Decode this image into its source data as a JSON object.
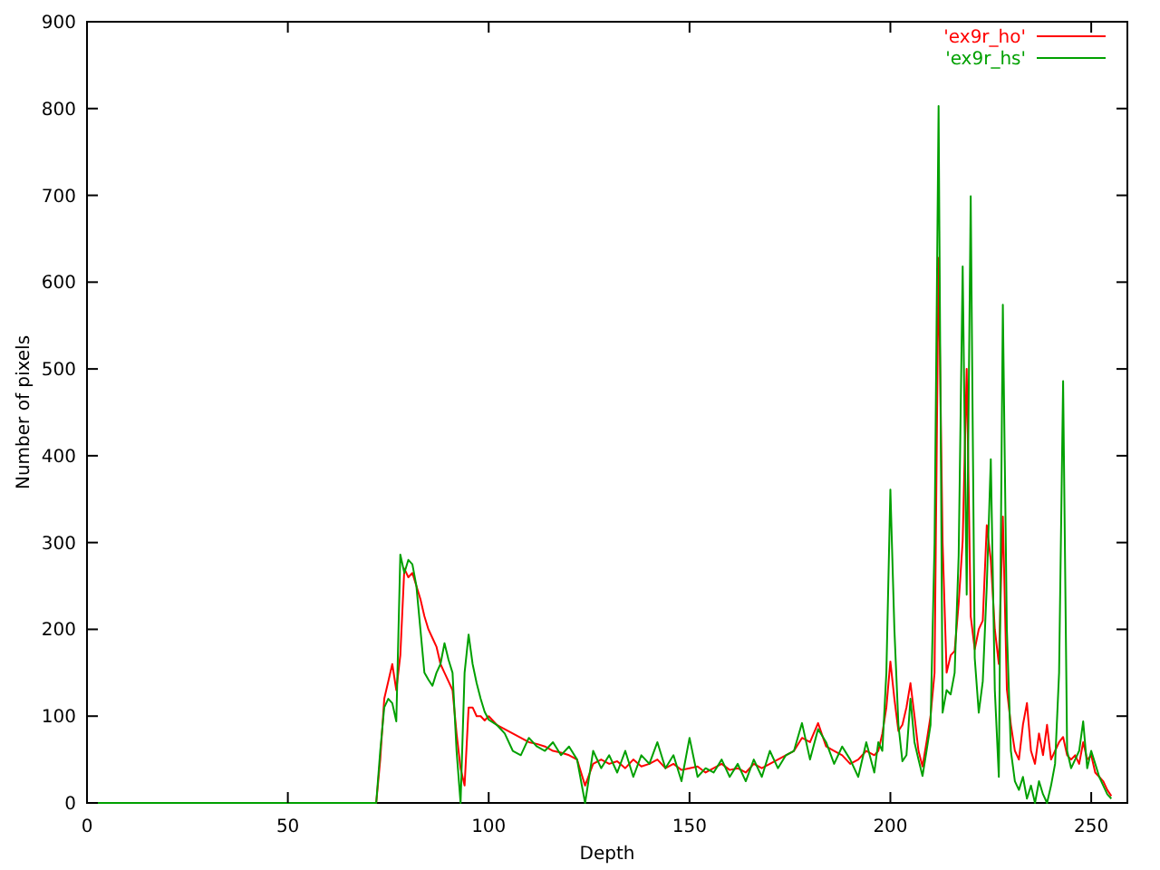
{
  "chart_data": {
    "type": "line",
    "xlabel": "Depth",
    "ylabel": "Number of pixels",
    "xlim": [
      0,
      259
    ],
    "xticks": [
      0,
      50,
      100,
      150,
      200,
      250
    ],
    "ylim": [
      0,
      900
    ],
    "yticks": [
      0,
      100,
      200,
      300,
      400,
      500,
      600,
      700,
      800,
      900
    ],
    "legend": "top right",
    "series": [
      {
        "name": "'ex9r_ho'",
        "color": "#ff0000",
        "x": [
          0,
          72,
          73,
          74,
          75,
          76,
          77,
          78,
          79,
          80,
          81,
          82,
          83,
          84,
          85,
          86,
          87,
          88,
          89,
          90,
          91,
          92,
          93,
          94,
          95,
          96,
          97,
          98,
          99,
          100,
          102,
          104,
          106,
          108,
          110,
          112,
          114,
          116,
          118,
          120,
          122,
          124,
          126,
          128,
          130,
          132,
          134,
          136,
          138,
          140,
          142,
          144,
          146,
          148,
          150,
          152,
          154,
          156,
          158,
          160,
          162,
          164,
          166,
          168,
          170,
          172,
          174,
          176,
          178,
          180,
          182,
          184,
          186,
          188,
          190,
          192,
          194,
          196,
          197,
          198,
          199,
          200,
          201,
          202,
          203,
          204,
          205,
          206,
          207,
          208,
          209,
          210,
          211,
          212,
          213,
          214,
          215,
          216,
          217,
          218,
          219,
          220,
          221,
          222,
          223,
          224,
          225,
          226,
          227,
          228,
          229,
          230,
          231,
          232,
          233,
          234,
          235,
          236,
          237,
          238,
          239,
          240,
          241,
          242,
          243,
          244,
          245,
          246,
          247,
          248,
          249,
          250,
          251,
          252,
          253,
          254,
          255
        ],
        "values": [
          0,
          0,
          50,
          120,
          140,
          160,
          130,
          170,
          270,
          260,
          265,
          250,
          235,
          215,
          200,
          190,
          180,
          160,
          150,
          140,
          130,
          80,
          40,
          20,
          110,
          110,
          100,
          100,
          95,
          100,
          90,
          85,
          80,
          75,
          70,
          68,
          65,
          60,
          58,
          55,
          50,
          20,
          45,
          50,
          45,
          48,
          40,
          50,
          42,
          45,
          50,
          40,
          45,
          38,
          40,
          42,
          35,
          40,
          45,
          38,
          40,
          35,
          45,
          40,
          45,
          50,
          55,
          60,
          75,
          70,
          92,
          65,
          60,
          55,
          45,
          50,
          60,
          55,
          60,
          80,
          110,
          163,
          120,
          83,
          90,
          110,
          138,
          100,
          60,
          42,
          70,
          100,
          150,
          628,
          300,
          150,
          170,
          175,
          230,
          302,
          500,
          215,
          177,
          200,
          210,
          320,
          280,
          200,
          160,
          330,
          131,
          90,
          60,
          50,
          90,
          115,
          60,
          45,
          80,
          55,
          90,
          50,
          60,
          70,
          76,
          55,
          50,
          55,
          45,
          70,
          50,
          55,
          35,
          30,
          25,
          15,
          8
        ]
      },
      {
        "name": "'ex9r_hs'",
        "color": "#00a000",
        "x": [
          0,
          72,
          73,
          74,
          75,
          76,
          77,
          78,
          79,
          80,
          81,
          82,
          83,
          84,
          85,
          86,
          87,
          88,
          89,
          90,
          91,
          92,
          93,
          94,
          95,
          96,
          97,
          98,
          99,
          100,
          102,
          104,
          106,
          108,
          110,
          112,
          114,
          116,
          118,
          120,
          122,
          124,
          126,
          128,
          130,
          132,
          134,
          136,
          138,
          140,
          142,
          144,
          146,
          148,
          150,
          152,
          154,
          156,
          158,
          160,
          162,
          164,
          166,
          168,
          170,
          172,
          174,
          176,
          178,
          180,
          182,
          184,
          186,
          188,
          190,
          192,
          194,
          196,
          197,
          198,
          199,
          200,
          201,
          202,
          203,
          204,
          205,
          206,
          207,
          208,
          209,
          210,
          211,
          212,
          213,
          214,
          215,
          216,
          217,
          218,
          219,
          220,
          221,
          222,
          223,
          224,
          225,
          226,
          227,
          228,
          229,
          230,
          231,
          232,
          233,
          234,
          235,
          236,
          237,
          238,
          239,
          240,
          241,
          242,
          243,
          244,
          245,
          246,
          247,
          248,
          249,
          250,
          251,
          252,
          253,
          254,
          255
        ],
        "values": [
          0,
          0,
          60,
          110,
          120,
          115,
          94,
          286,
          265,
          280,
          275,
          250,
          200,
          150,
          142,
          135,
          150,
          160,
          184,
          165,
          150,
          60,
          0,
          150,
          194,
          160,
          138,
          120,
          105,
          96,
          90,
          80,
          60,
          55,
          75,
          65,
          60,
          70,
          55,
          65,
          50,
          0,
          60,
          40,
          55,
          35,
          60,
          30,
          55,
          45,
          70,
          40,
          55,
          25,
          75,
          30,
          40,
          35,
          50,
          30,
          45,
          25,
          50,
          30,
          60,
          40,
          55,
          60,
          92,
          50,
          85,
          70,
          45,
          65,
          50,
          30,
          70,
          35,
          70,
          60,
          150,
          361,
          200,
          90,
          48,
          55,
          120,
          70,
          50,
          31,
          60,
          90,
          300,
          803,
          104,
          130,
          125,
          150,
          285,
          618,
          240,
          699,
          167,
          104,
          140,
          250,
          396,
          130,
          30,
          574,
          200,
          60,
          25,
          15,
          30,
          5,
          20,
          0,
          25,
          10,
          0,
          20,
          45,
          150,
          486,
          60,
          40,
          50,
          60,
          94,
          40,
          60,
          45,
          30,
          20,
          10,
          5
        ]
      }
    ]
  }
}
